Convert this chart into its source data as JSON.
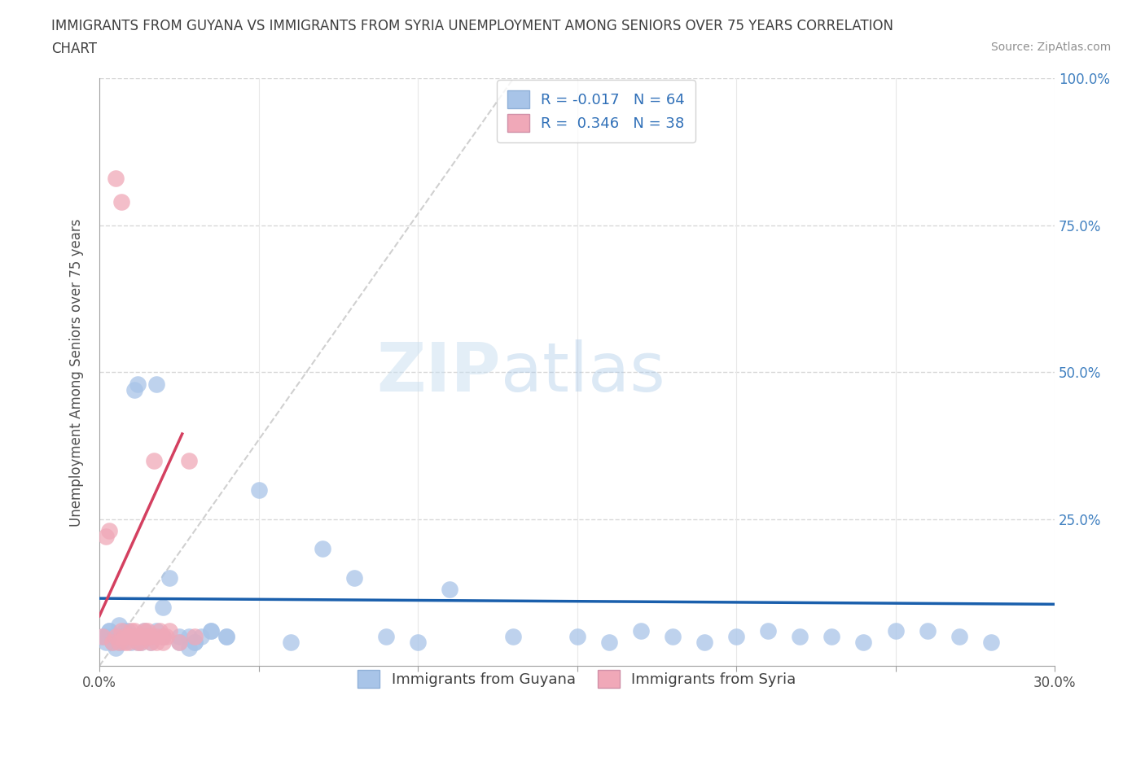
{
  "title": "IMMIGRANTS FROM GUYANA VS IMMIGRANTS FROM SYRIA UNEMPLOYMENT AMONG SENIORS OVER 75 YEARS CORRELATION\nCHART",
  "source": "Source: ZipAtlas.com",
  "xlabel_guyana": "Immigrants from Guyana",
  "xlabel_syria": "Immigrants from Syria",
  "ylabel": "Unemployment Among Seniors over 75 years",
  "xlim": [
    0.0,
    0.3
  ],
  "ylim": [
    0.0,
    1.0
  ],
  "R_guyana": -0.017,
  "N_guyana": 64,
  "R_syria": 0.346,
  "N_syria": 38,
  "guyana_color": "#a8c4e8",
  "syria_color": "#f0a8b8",
  "guyana_line_color": "#1a5fac",
  "syria_line_color": "#d44060",
  "ref_line_color": "#d0d0d0",
  "watermark_zip": "ZIP",
  "watermark_atlas": "atlas",
  "guyana_x": [
    0.002,
    0.003,
    0.004,
    0.005,
    0.006,
    0.007,
    0.008,
    0.009,
    0.01,
    0.011,
    0.012,
    0.013,
    0.014,
    0.015,
    0.016,
    0.018,
    0.02,
    0.022,
    0.025,
    0.028,
    0.03,
    0.032,
    0.035,
    0.04,
    0.05,
    0.06,
    0.07,
    0.08,
    0.09,
    0.1,
    0.11,
    0.13,
    0.15,
    0.16,
    0.17,
    0.18,
    0.19,
    0.2,
    0.21,
    0.22,
    0.23,
    0.24,
    0.25,
    0.26,
    0.27,
    0.28,
    0.001,
    0.002,
    0.003,
    0.004,
    0.005,
    0.006,
    0.007,
    0.008,
    0.01,
    0.012,
    0.015,
    0.018,
    0.02,
    0.025,
    0.028,
    0.03,
    0.035,
    0.04
  ],
  "guyana_y": [
    0.05,
    0.06,
    0.04,
    0.05,
    0.07,
    0.04,
    0.05,
    0.06,
    0.04,
    0.47,
    0.48,
    0.04,
    0.06,
    0.05,
    0.04,
    0.48,
    0.1,
    0.15,
    0.05,
    0.03,
    0.04,
    0.05,
    0.06,
    0.05,
    0.3,
    0.04,
    0.2,
    0.15,
    0.05,
    0.04,
    0.13,
    0.05,
    0.05,
    0.04,
    0.06,
    0.05,
    0.04,
    0.05,
    0.06,
    0.05,
    0.05,
    0.04,
    0.06,
    0.06,
    0.05,
    0.04,
    0.05,
    0.04,
    0.06,
    0.05,
    0.03,
    0.04,
    0.05,
    0.06,
    0.05,
    0.04,
    0.05,
    0.06,
    0.05,
    0.04,
    0.05,
    0.04,
    0.06,
    0.05
  ],
  "syria_x": [
    0.005,
    0.007,
    0.008,
    0.009,
    0.01,
    0.011,
    0.012,
    0.013,
    0.014,
    0.015,
    0.016,
    0.017,
    0.018,
    0.019,
    0.02,
    0.021,
    0.022,
    0.025,
    0.028,
    0.03,
    0.001,
    0.002,
    0.003,
    0.004,
    0.005,
    0.006,
    0.007,
    0.008,
    0.009,
    0.01,
    0.011,
    0.012,
    0.013,
    0.014,
    0.015,
    0.016,
    0.018,
    0.02
  ],
  "syria_y": [
    0.83,
    0.79,
    0.04,
    0.05,
    0.06,
    0.05,
    0.04,
    0.05,
    0.06,
    0.05,
    0.04,
    0.35,
    0.05,
    0.06,
    0.04,
    0.05,
    0.06,
    0.04,
    0.35,
    0.05,
    0.05,
    0.22,
    0.23,
    0.04,
    0.05,
    0.04,
    0.06,
    0.05,
    0.04,
    0.05,
    0.06,
    0.05,
    0.04,
    0.05,
    0.06,
    0.05,
    0.04,
    0.05
  ],
  "guyana_line_x": [
    0.0,
    0.3
  ],
  "guyana_line_y": [
    0.115,
    0.105
  ],
  "syria_line_x": [
    0.0,
    0.026
  ],
  "syria_line_y": [
    0.085,
    0.395
  ]
}
